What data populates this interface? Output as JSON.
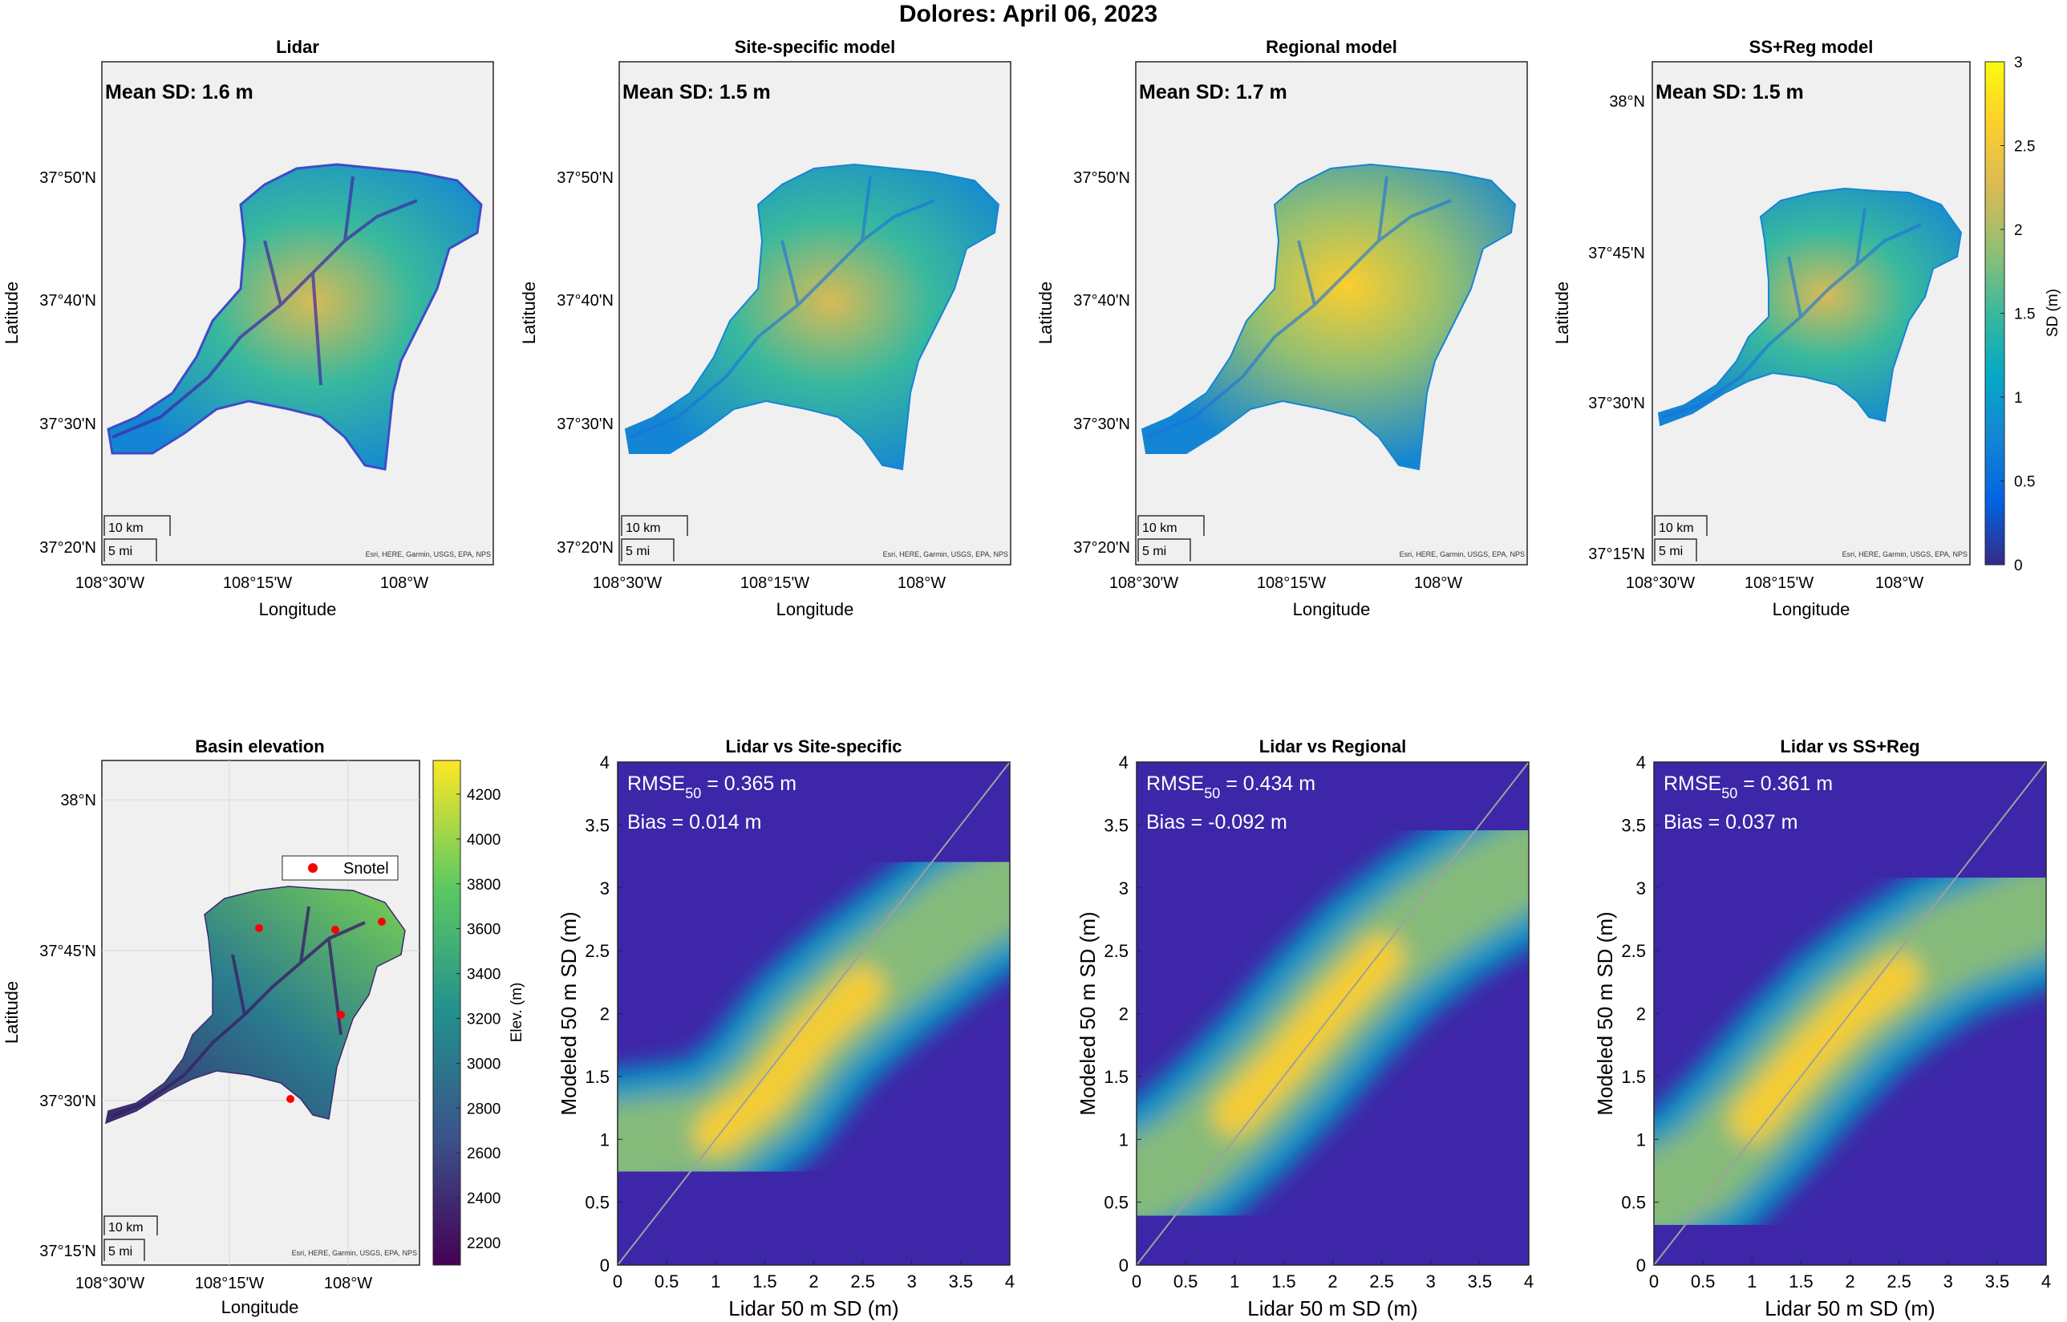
{
  "suptitle": "Dolores: April 06, 2023",
  "colors": {
    "parula": [
      "#352a87",
      "#0363e1",
      "#1485d4",
      "#06a7c6",
      "#38b99e",
      "#92bf73",
      "#d9ba56",
      "#fcce2e",
      "#f9fb0e"
    ],
    "no_data_bg": "#3d26a8",
    "map_bg": "#f0f0f0",
    "snotel": "#ff0000",
    "one_to_one": "#a0a0a0"
  },
  "map_common": {
    "xlabel": "Longitude",
    "ylabel": "Latitude",
    "x_ticks": [
      "108°30'W",
      "108°15'W",
      "108°W"
    ],
    "attribution": "Esri, HERE, Garmin, USGS, EPA, NPS",
    "scalebar": [
      "10 km",
      "5 mi"
    ]
  },
  "maps": [
    {
      "title": "Lidar",
      "mean_label": "Mean SD: 1.6 m",
      "y_ticks": [
        "37°50'N",
        "37°40'N",
        "37°30'N",
        "37°20'N"
      ]
    },
    {
      "title": "Site-specific model",
      "mean_label": "Mean SD: 1.5 m",
      "y_ticks": [
        "37°50'N",
        "37°40'N",
        "37°30'N",
        "37°20'N"
      ]
    },
    {
      "title": "Regional model",
      "mean_label": "Mean SD: 1.7 m",
      "y_ticks": [
        "37°50'N",
        "37°40'N",
        "37°30'N",
        "37°20'N"
      ]
    },
    {
      "title": "SS+Reg model",
      "mean_label": "Mean SD: 1.5 m",
      "y_ticks": [
        "38°N",
        "37°45'N",
        "37°30'N",
        "37°15'N"
      ]
    }
  ],
  "sd_colorbar": {
    "label": "SD (m)",
    "ticks": [
      "0",
      "0.5",
      "1",
      "1.5",
      "2",
      "2.5",
      "3"
    ],
    "range": [
      0,
      3
    ]
  },
  "elevation": {
    "title": "Basin elevation",
    "y_ticks": [
      "38°N",
      "37°45'N",
      "37°30'N",
      "37°15'N"
    ],
    "legend": "Snotel",
    "colorbar_label": "Elev. (m)",
    "colorbar_ticks": [
      "2200",
      "2400",
      "2600",
      "2800",
      "3000",
      "3200",
      "3400",
      "3600",
      "3800",
      "4000",
      "4200"
    ],
    "colorbar_range": [
      2100,
      4350
    ]
  },
  "chart_data": [
    {
      "type": "heatmap",
      "title": "Lidar vs Site-specific",
      "xlabel": "Lidar 50 m SD (m)",
      "ylabel": "Modeled 50 m SD (m)",
      "xlim": [
        0,
        4
      ],
      "ylim": [
        0,
        4
      ],
      "ticks": [
        "0",
        "0.5",
        "1",
        "1.5",
        "2",
        "2.5",
        "3",
        "3.5",
        "4"
      ],
      "rmse_prefix": "RMSE",
      "rmse_sub": "50",
      "rmse_value": " = 0.365 m",
      "bias_label": "Bias = 0.014 m",
      "trend": [
        [
          0.0,
          0.95
        ],
        [
          0.5,
          1.0
        ],
        [
          1.0,
          1.05
        ],
        [
          1.5,
          1.35
        ],
        [
          2.0,
          1.85
        ],
        [
          2.5,
          2.2
        ],
        [
          3.0,
          2.5
        ],
        [
          3.5,
          2.8
        ],
        [
          4.0,
          3.0
        ]
      ]
    },
    {
      "type": "heatmap",
      "title": "Lidar vs Regional",
      "xlabel": "Lidar 50 m SD (m)",
      "ylabel": "Modeled 50 m SD (m)",
      "xlim": [
        0,
        4
      ],
      "ylim": [
        0,
        4
      ],
      "ticks": [
        "0",
        "0.5",
        "1",
        "1.5",
        "2",
        "2.5",
        "3",
        "3.5",
        "4"
      ],
      "rmse_prefix": "RMSE",
      "rmse_sub": "50",
      "rmse_value": " = 0.434 m",
      "bias_label": "Bias = -0.092 m",
      "trend": [
        [
          0.0,
          0.65
        ],
        [
          0.5,
          0.85
        ],
        [
          1.0,
          1.2
        ],
        [
          1.5,
          1.6
        ],
        [
          2.0,
          2.05
        ],
        [
          2.5,
          2.45
        ],
        [
          3.0,
          2.75
        ],
        [
          3.5,
          3.0
        ],
        [
          4.0,
          3.2
        ]
      ]
    },
    {
      "type": "heatmap",
      "title": "Lidar vs SS+Reg",
      "xlabel": "Lidar 50 m SD (m)",
      "ylabel": "Modeled 50 m SD (m)",
      "xlim": [
        0,
        4
      ],
      "ylim": [
        0,
        4
      ],
      "ticks": [
        "0",
        "0.5",
        "1",
        "1.5",
        "2",
        "2.5",
        "3",
        "3.5",
        "4"
      ],
      "rmse_prefix": "RMSE",
      "rmse_sub": "50",
      "rmse_value": " = 0.361 m",
      "bias_label": "Bias = 0.037 m",
      "trend": [
        [
          0.0,
          0.55
        ],
        [
          0.5,
          0.75
        ],
        [
          1.0,
          1.15
        ],
        [
          1.5,
          1.6
        ],
        [
          2.0,
          2.0
        ],
        [
          2.5,
          2.3
        ],
        [
          3.0,
          2.55
        ],
        [
          3.5,
          2.7
        ],
        [
          4.0,
          2.85
        ]
      ]
    }
  ]
}
